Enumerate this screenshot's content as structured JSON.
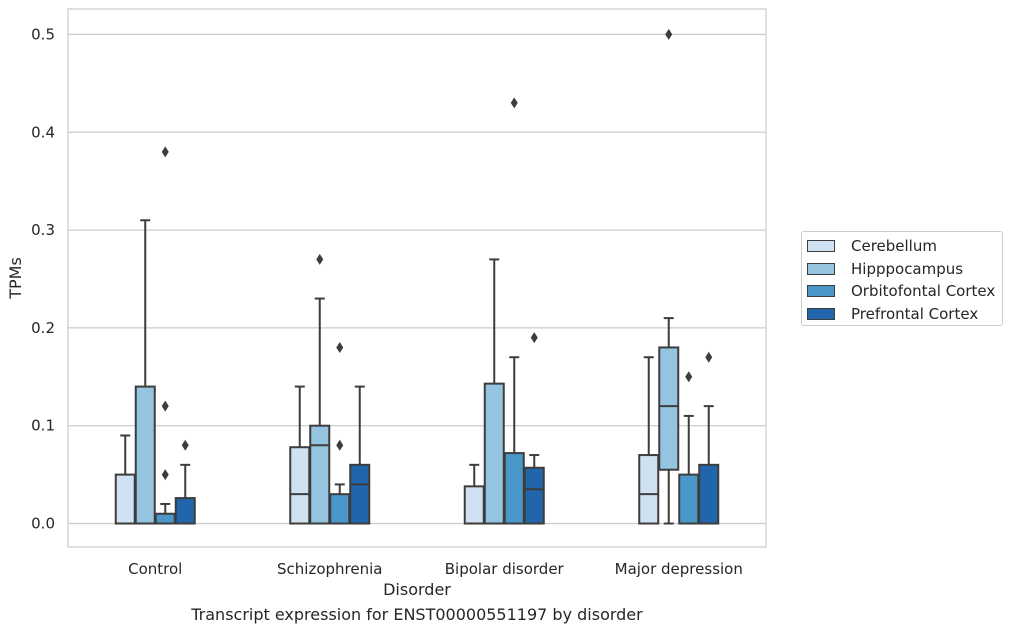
{
  "caption": "Transcript expression for ENST00000551197 by disorder",
  "chart_data": {
    "type": "box",
    "xlabel": "Disorder",
    "ylabel": "TPMs",
    "ylim": [
      -0.024,
      0.526
    ],
    "yticks": [
      0.0,
      0.1,
      0.2,
      0.3,
      0.4,
      0.5
    ],
    "ytick_labels": [
      "0.0",
      "0.1",
      "0.2",
      "0.3",
      "0.4",
      "0.5"
    ],
    "grid": "horizontal",
    "legend_position": "right",
    "categories": [
      "Control",
      "Schizophrenia",
      "Bipolar disorder",
      "Major depression"
    ],
    "series": [
      {
        "name": "Cerebellum",
        "color": "#d0e1f2",
        "boxes": [
          {
            "whislo": 0.0,
            "q1": 0.0,
            "med": 0.0,
            "q3": 0.05,
            "whishi": 0.09,
            "fliers": []
          },
          {
            "whislo": 0.0,
            "q1": 0.0,
            "med": 0.03,
            "q3": 0.078,
            "whishi": 0.14,
            "fliers": []
          },
          {
            "whislo": 0.0,
            "q1": 0.0,
            "med": 0.0,
            "q3": 0.038,
            "whishi": 0.06,
            "fliers": []
          },
          {
            "whislo": 0.0,
            "q1": 0.0,
            "med": 0.03,
            "q3": 0.07,
            "whishi": 0.17,
            "fliers": []
          }
        ]
      },
      {
        "name": "Hipppocampus",
        "color": "#94c4df",
        "boxes": [
          {
            "whislo": 0.0,
            "q1": 0.0,
            "med": 0.0,
            "q3": 0.14,
            "whishi": 0.31,
            "fliers": []
          },
          {
            "whislo": 0.0,
            "q1": 0.0,
            "med": 0.08,
            "q3": 0.1,
            "whishi": 0.23,
            "fliers": [
              0.27
            ]
          },
          {
            "whislo": 0.0,
            "q1": 0.0,
            "med": 0.0,
            "q3": 0.143,
            "whishi": 0.27,
            "fliers": []
          },
          {
            "whislo": 0.0,
            "q1": 0.055,
            "med": 0.12,
            "q3": 0.18,
            "whishi": 0.21,
            "fliers": [
              0.5
            ]
          }
        ]
      },
      {
        "name": "Orbitofontal Cortex",
        "color": "#4a98c9",
        "boxes": [
          {
            "whislo": 0.0,
            "q1": 0.0,
            "med": 0.0,
            "q3": 0.01,
            "whishi": 0.02,
            "fliers": [
              0.05,
              0.12,
              0.38
            ]
          },
          {
            "whislo": 0.0,
            "q1": 0.0,
            "med": 0.0,
            "q3": 0.03,
            "whishi": 0.04,
            "fliers": [
              0.08,
              0.18
            ]
          },
          {
            "whislo": 0.0,
            "q1": 0.0,
            "med": 0.0,
            "q3": 0.072,
            "whishi": 0.17,
            "fliers": [
              0.43
            ]
          },
          {
            "whislo": 0.0,
            "q1": 0.0,
            "med": 0.0,
            "q3": 0.05,
            "whishi": 0.11,
            "fliers": [
              0.15
            ]
          }
        ]
      },
      {
        "name": "Prefrontal Cortex",
        "color": "#2166ac",
        "boxes": [
          {
            "whislo": 0.0,
            "q1": 0.0,
            "med": 0.0,
            "q3": 0.026,
            "whishi": 0.06,
            "fliers": [
              0.08
            ]
          },
          {
            "whislo": 0.0,
            "q1": 0.0,
            "med": 0.04,
            "q3": 0.06,
            "whishi": 0.14,
            "fliers": []
          },
          {
            "whislo": 0.0,
            "q1": 0.0,
            "med": 0.035,
            "q3": 0.057,
            "whishi": 0.07,
            "fliers": [
              0.19
            ]
          },
          {
            "whislo": 0.0,
            "q1": 0.0,
            "med": 0.0,
            "q3": 0.06,
            "whishi": 0.12,
            "fliers": [
              0.17
            ]
          }
        ]
      }
    ]
  }
}
